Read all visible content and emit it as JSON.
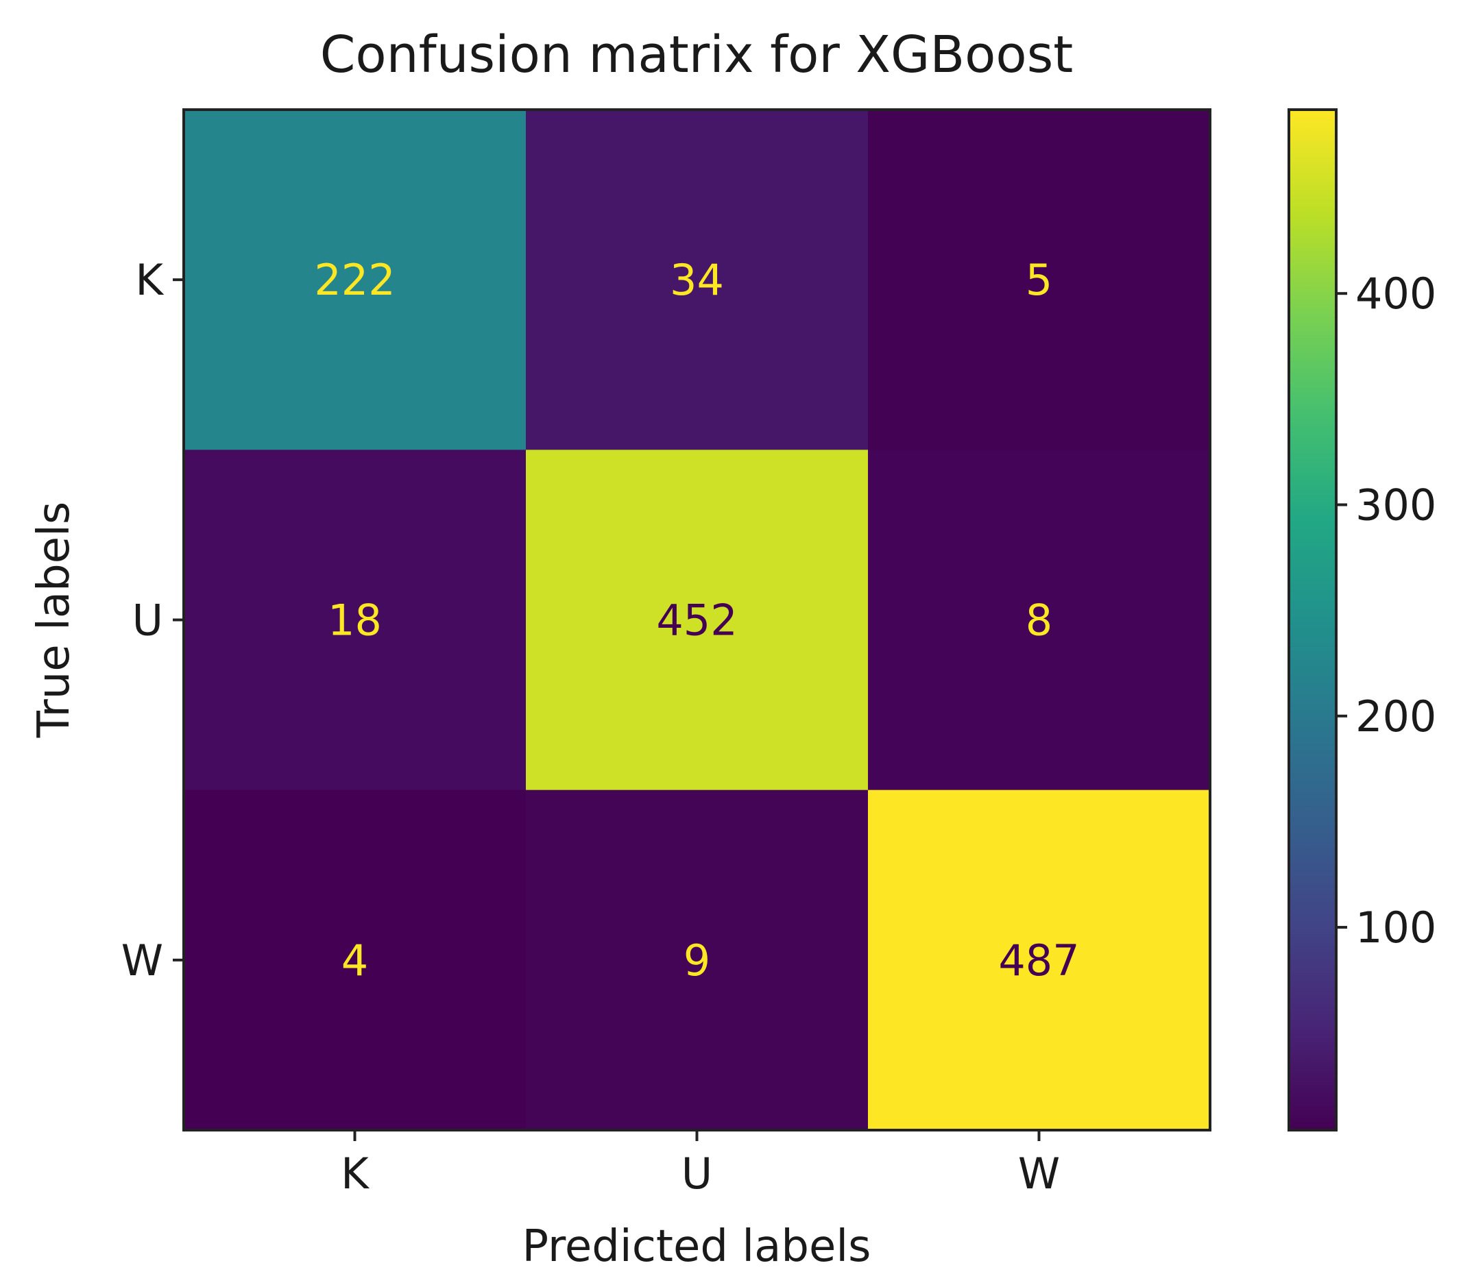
{
  "chart_data": {
    "type": "heatmap",
    "title": "Confusion matrix for XGBoost",
    "xlabel": "Predicted labels",
    "ylabel": "True labels",
    "x_categories": [
      "K",
      "U",
      "W"
    ],
    "y_categories": [
      "K",
      "U",
      "W"
    ],
    "values": [
      [
        222,
        34,
        5
      ],
      [
        18,
        452,
        8
      ],
      [
        4,
        9,
        487
      ]
    ],
    "colormap": "viridis",
    "colorbar": {
      "range": [
        4,
        487
      ],
      "ticks": [
        100,
        200,
        300,
        400
      ],
      "tick_labels": [
        "100",
        "200",
        "300",
        "400"
      ]
    },
    "annotation_colors": {
      "on_dark": "#fde725",
      "on_light": "#440154"
    }
  }
}
